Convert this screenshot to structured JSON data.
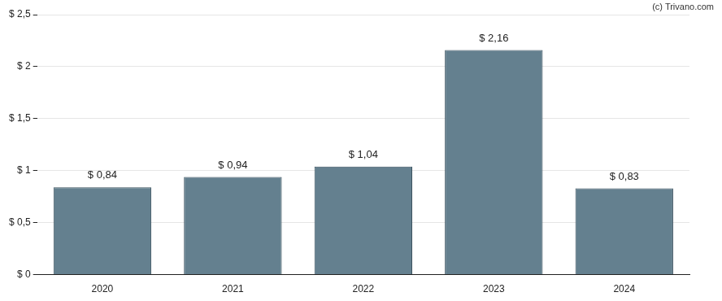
{
  "chart_data": {
    "type": "bar",
    "annotation": "(c) Trivano.com",
    "categories": [
      "2020",
      "2021",
      "2022",
      "2023",
      "2024"
    ],
    "values": [
      0.84,
      0.94,
      1.04,
      2.16,
      0.83
    ],
    "value_labels": [
      "$ 0,84",
      "$ 0,94",
      "$ 1,04",
      "$ 2,16",
      "$ 0,83"
    ],
    "data_labels": true,
    "color": "#64808f",
    "ylim": [
      0,
      2.5
    ],
    "yticks": [
      {
        "value": 0,
        "label": "$ 0"
      },
      {
        "value": 0.5,
        "label": "$ 0,5"
      },
      {
        "value": 1,
        "label": "$ 1"
      },
      {
        "value": 1.5,
        "label": "$ 1,5"
      },
      {
        "value": 2,
        "label": "$ 2"
      },
      {
        "value": 2.5,
        "label": "$ 2,5"
      }
    ],
    "grid": true
  }
}
